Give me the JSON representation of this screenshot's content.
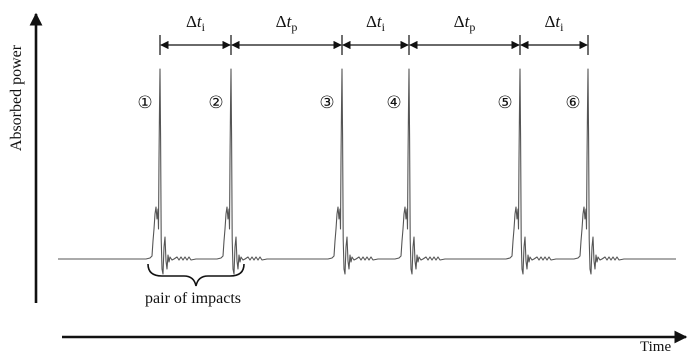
{
  "axes": {
    "y_label": "Absorbed power",
    "x_label": "Time"
  },
  "intervals": [
    {
      "symbol": "Δ",
      "var": "t",
      "sub": "i"
    },
    {
      "symbol": "Δ",
      "var": "t",
      "sub": "p"
    },
    {
      "symbol": "Δ",
      "var": "t",
      "sub": "i"
    },
    {
      "symbol": "Δ",
      "var": "t",
      "sub": "p"
    },
    {
      "symbol": "Δ",
      "var": "t",
      "sub": "i"
    }
  ],
  "impacts": [
    {
      "label": "①"
    },
    {
      "label": "②"
    },
    {
      "label": "③"
    },
    {
      "label": "④"
    },
    {
      "label": "⑤"
    },
    {
      "label": "⑥"
    }
  ],
  "brace_label": "pair of impacts"
}
